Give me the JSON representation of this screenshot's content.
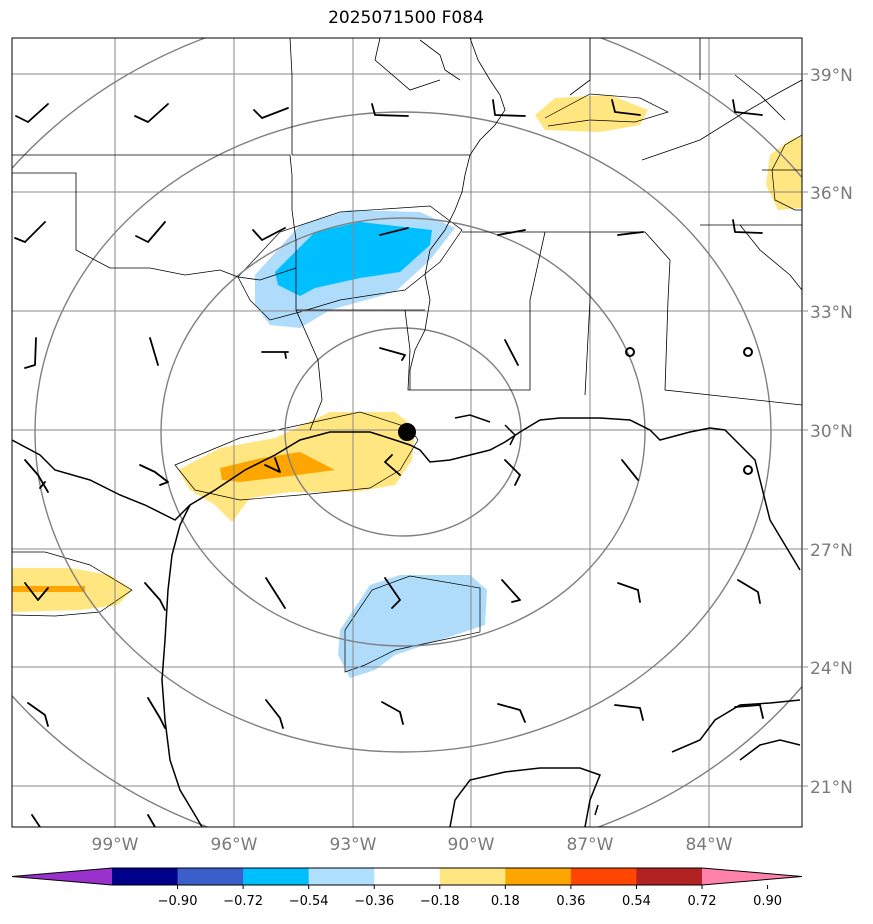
{
  "title": "2025071500 F084",
  "latitude_labels": [
    "39°N",
    "36°N",
    "33°N",
    "30°N",
    "27°N",
    "24°N",
    "21°N"
  ],
  "longitude_labels": [
    "99°W",
    "96°W",
    "93°W",
    "90°W",
    "87°W",
    "84°W"
  ],
  "colorbar": {
    "ticks": [
      "−0.90",
      "−0.72",
      "−0.54",
      "−0.36",
      "−0.18",
      "0.18",
      "0.36",
      "0.54",
      "0.72",
      "0.90"
    ],
    "colors": [
      "#9932cc",
      "#00008b",
      "#3a5fcd",
      "#00bfff",
      "#b0e0ff",
      "#ffffff",
      "#ffe680",
      "#ffa500",
      "#ff4500",
      "#b22222",
      "#ff82ab"
    ]
  },
  "colors": {
    "grid": "#888888",
    "range_rings": "#808080",
    "coast": "#000000",
    "neg_light": "#afdcfa",
    "neg_strong": "#00bfff",
    "pos_light": "#ffe680",
    "pos_strong": "#ffa500"
  },
  "features": {
    "center_marker": "black-dot",
    "range_rings": 4
  }
}
